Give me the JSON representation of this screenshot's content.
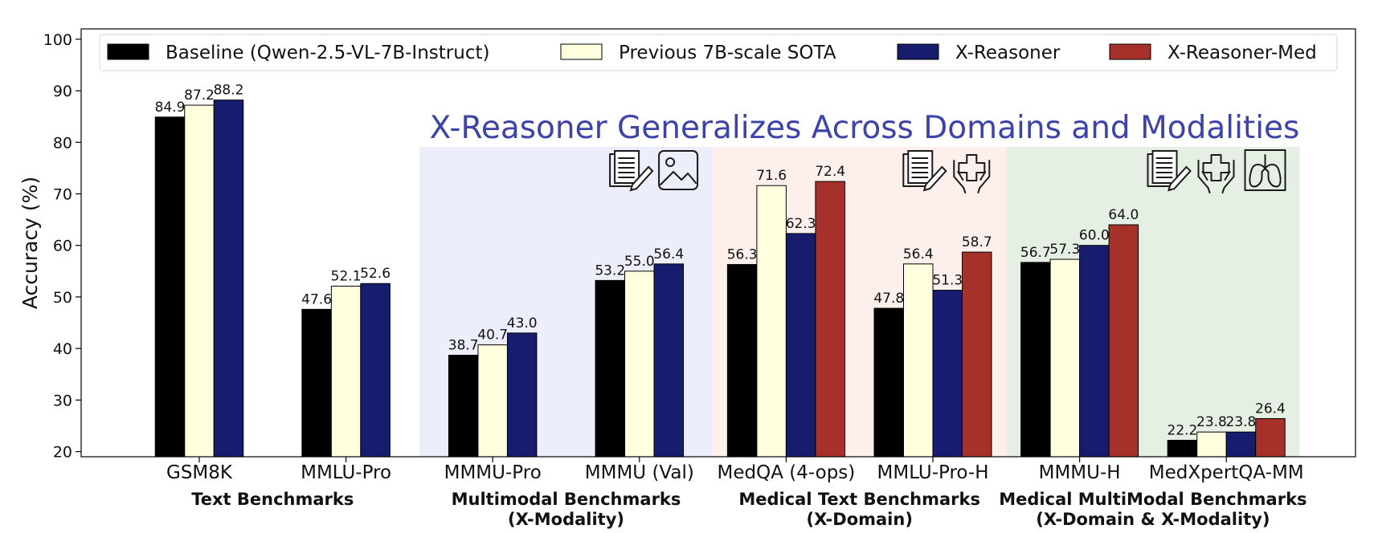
{
  "chart_data": {
    "type": "bar",
    "title": "X-Reasoner Generalizes Across Domains and Modalities",
    "ylabel": "Accuracy (%)",
    "xlabel": "",
    "ylim": [
      19,
      102
    ],
    "yticks": [
      20,
      30,
      40,
      50,
      60,
      70,
      80,
      90,
      100
    ],
    "grid": false,
    "legend_position": "top",
    "categories": [
      "GSM8K",
      "MMLU-Pro",
      "MMMU-Pro",
      "MMMU (Val)",
      "MedQA (4-ops)",
      "MMLU-Pro-H",
      "MMMU-H",
      "MedXpertQA-MM"
    ],
    "series": [
      {
        "name": "Baseline (Qwen-2.5-VL-7B-Instruct)",
        "color": "#000000",
        "values": [
          84.9,
          47.6,
          38.7,
          53.2,
          56.3,
          47.8,
          56.7,
          22.2
        ]
      },
      {
        "name": "Previous 7B-scale SOTA",
        "color": "#ffffe0",
        "values": [
          87.2,
          52.1,
          40.7,
          55.0,
          71.6,
          56.4,
          57.3,
          23.8
        ]
      },
      {
        "name": "X-Reasoner",
        "color": "#181c6e",
        "values": [
          88.2,
          52.6,
          43.0,
          56.4,
          62.3,
          51.3,
          60.0,
          23.8
        ]
      },
      {
        "name": "X-Reasoner-Med",
        "color": "#a6312a",
        "values": [
          null,
          null,
          null,
          null,
          72.4,
          58.7,
          64.0,
          26.4
        ]
      }
    ],
    "groups": [
      {
        "label_lines": [
          "Text Benchmarks"
        ],
        "categories": [
          0,
          1
        ],
        "shade": null,
        "icons": []
      },
      {
        "label_lines": [
          "Multimodal Benchmarks",
          "(X-Modality)"
        ],
        "categories": [
          2,
          3
        ],
        "shade": "#eceefb",
        "icons": [
          "document-pen-icon",
          "image-icon"
        ]
      },
      {
        "label_lines": [
          "Medical Text Benchmarks",
          "(X-Domain)"
        ],
        "categories": [
          4,
          5
        ],
        "shade": "#fdefeb",
        "icons": [
          "document-pen-icon",
          "medical-hands-icon"
        ]
      },
      {
        "label_lines": [
          "Medical MultiModal Benchmarks",
          "(X-Domain & X-Modality)"
        ],
        "categories": [
          6,
          7
        ],
        "shade": "#e6efe4",
        "icons": [
          "document-pen-icon",
          "medical-hands-icon",
          "lungs-icon"
        ]
      }
    ]
  }
}
